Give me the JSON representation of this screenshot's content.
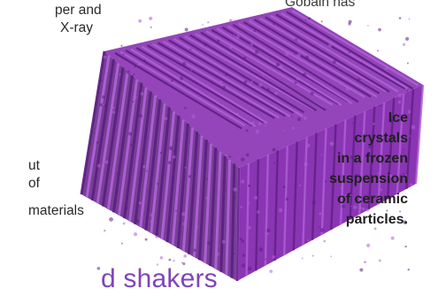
{
  "text_fragments": {
    "top_left_line1": "per and",
    "top_left_line2": "X-ray",
    "top_right_line": "Gobain has",
    "bottom_left_line1": "ut",
    "bottom_left_line2": "of",
    "bottom_left_line3": "materials"
  },
  "caption": {
    "lines": [
      "Ice",
      "crystals",
      "in a frozen",
      "suspension",
      "of ceramic",
      "particles."
    ]
  },
  "heading_fragment": "d shakers",
  "colors": {
    "crystal_fill": "#8a35b3",
    "crystal_dark": "#5e1f83",
    "crystal_light": "#b060d8",
    "heading": "#7f44b8"
  }
}
